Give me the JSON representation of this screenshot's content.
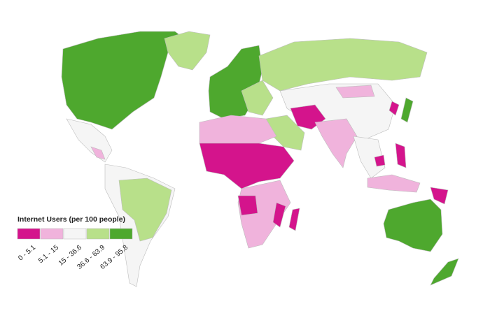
{
  "legend": {
    "title": "Internet Users (per 100 people)",
    "items": [
      {
        "label": "0 - 5.1",
        "color": "#d4148c"
      },
      {
        "label": "5.1 - 15",
        "color": "#f0b3dc"
      },
      {
        "label": "15 - 36.6",
        "color": "#f5f5f5"
      },
      {
        "label": "36.6 - 63.9",
        "color": "#b8e08a"
      },
      {
        "label": "63.9 - 95.8",
        "color": "#4ea82e"
      }
    ]
  }
}
